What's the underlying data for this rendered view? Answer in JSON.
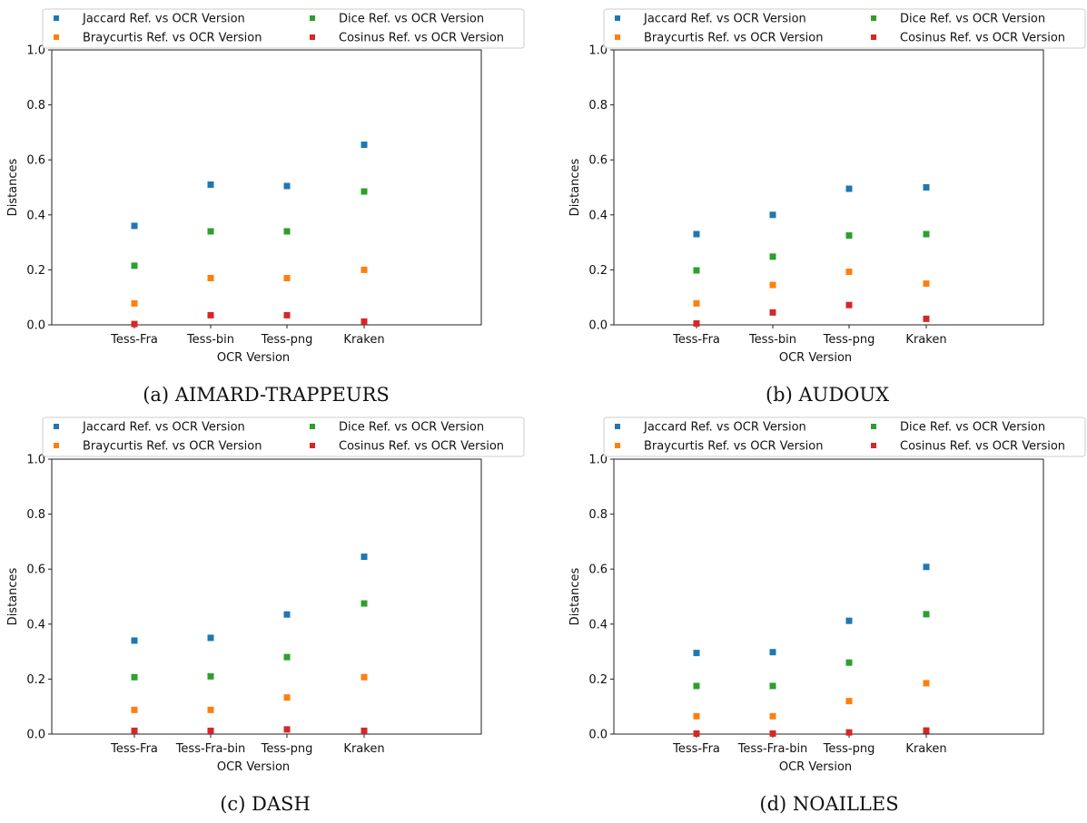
{
  "legend_labels": {
    "jaccard": "Jaccard  Ref. vs OCR Version",
    "dice": "Dice  Ref. vs OCR Version",
    "braycurtis": "Braycurtis  Ref. vs OCR Version",
    "cosinus": "Cosinus  Ref. vs OCR Version"
  },
  "series_colors": {
    "jaccard": "#1f77b4",
    "braycurtis": "#ff7f0e",
    "dice": "#2ca02c",
    "cosinus": "#d62728"
  },
  "chart_data": [
    {
      "type": "scatter",
      "caption": "(a) AIMARD-TRAPPEURS",
      "xlabel": "OCR Version",
      "ylabel": "Distances",
      "ylim": [
        0,
        1
      ],
      "yticks": [
        "0.0",
        "0.2",
        "0.4",
        "0.6",
        "0.8",
        "1.0"
      ],
      "categories": [
        "Tess-Fra",
        "Tess-bin",
        "Tess-png",
        "Kraken"
      ],
      "legend_position": "top",
      "grid": false,
      "series": [
        {
          "key": "jaccard",
          "values": [
            0.36,
            0.51,
            0.505,
            0.655
          ]
        },
        {
          "key": "dice",
          "values": [
            0.215,
            0.34,
            0.34,
            0.485
          ]
        },
        {
          "key": "braycurtis",
          "values": [
            0.078,
            0.17,
            0.17,
            0.2
          ]
        },
        {
          "key": "cosinus",
          "values": [
            0.003,
            0.035,
            0.035,
            0.012
          ]
        }
      ]
    },
    {
      "type": "scatter",
      "caption": "(b) AUDOUX",
      "xlabel": "OCR Version",
      "ylabel": "Distances",
      "ylim": [
        0,
        1
      ],
      "yticks": [
        "0.0",
        "0.2",
        "0.4",
        "0.6",
        "0.8",
        "1.0"
      ],
      "categories": [
        "Tess-Fra",
        "Tess-bin",
        "Tess-png",
        "Kraken"
      ],
      "legend_position": "top",
      "grid": false,
      "series": [
        {
          "key": "jaccard",
          "values": [
            0.33,
            0.4,
            0.495,
            0.5
          ]
        },
        {
          "key": "dice",
          "values": [
            0.198,
            0.248,
            0.325,
            0.33
          ]
        },
        {
          "key": "braycurtis",
          "values": [
            0.078,
            0.145,
            0.193,
            0.15
          ]
        },
        {
          "key": "cosinus",
          "values": [
            0.005,
            0.045,
            0.072,
            0.022
          ]
        }
      ]
    },
    {
      "type": "scatter",
      "caption": "(c) DASH",
      "xlabel": "OCR Version",
      "ylabel": "Distances",
      "ylim": [
        0,
        1
      ],
      "yticks": [
        "0.0",
        "0.2",
        "0.4",
        "0.6",
        "0.8",
        "1.0"
      ],
      "categories": [
        "Tess-Fra",
        "Tess-Fra-bin",
        "Tess-png",
        "Kraken"
      ],
      "legend_position": "top",
      "grid": false,
      "series": [
        {
          "key": "jaccard",
          "values": [
            0.34,
            0.35,
            0.435,
            0.645
          ]
        },
        {
          "key": "dice",
          "values": [
            0.207,
            0.21,
            0.28,
            0.475
          ]
        },
        {
          "key": "braycurtis",
          "values": [
            0.088,
            0.088,
            0.133,
            0.207
          ]
        },
        {
          "key": "cosinus",
          "values": [
            0.012,
            0.012,
            0.017,
            0.012
          ]
        }
      ]
    },
    {
      "type": "scatter",
      "caption": "(d) NOAILLES",
      "xlabel": "OCR Version",
      "ylabel": "Distances",
      "ylim": [
        0,
        1
      ],
      "yticks": [
        "0.0",
        "0.2",
        "0.4",
        "0.6",
        "0.8",
        "1.0"
      ],
      "categories": [
        "Tess-Fra",
        "Tess-Fra-bin",
        "Tess-png",
        "Kraken"
      ],
      "legend_position": "top",
      "grid": false,
      "series": [
        {
          "key": "jaccard",
          "values": [
            0.295,
            0.298,
            0.412,
            0.608
          ]
        },
        {
          "key": "dice",
          "values": [
            0.175,
            0.175,
            0.26,
            0.436
          ]
        },
        {
          "key": "braycurtis",
          "values": [
            0.065,
            0.065,
            0.12,
            0.185
          ]
        },
        {
          "key": "cosinus",
          "values": [
            0.002,
            0.002,
            0.006,
            0.013
          ]
        }
      ]
    }
  ]
}
